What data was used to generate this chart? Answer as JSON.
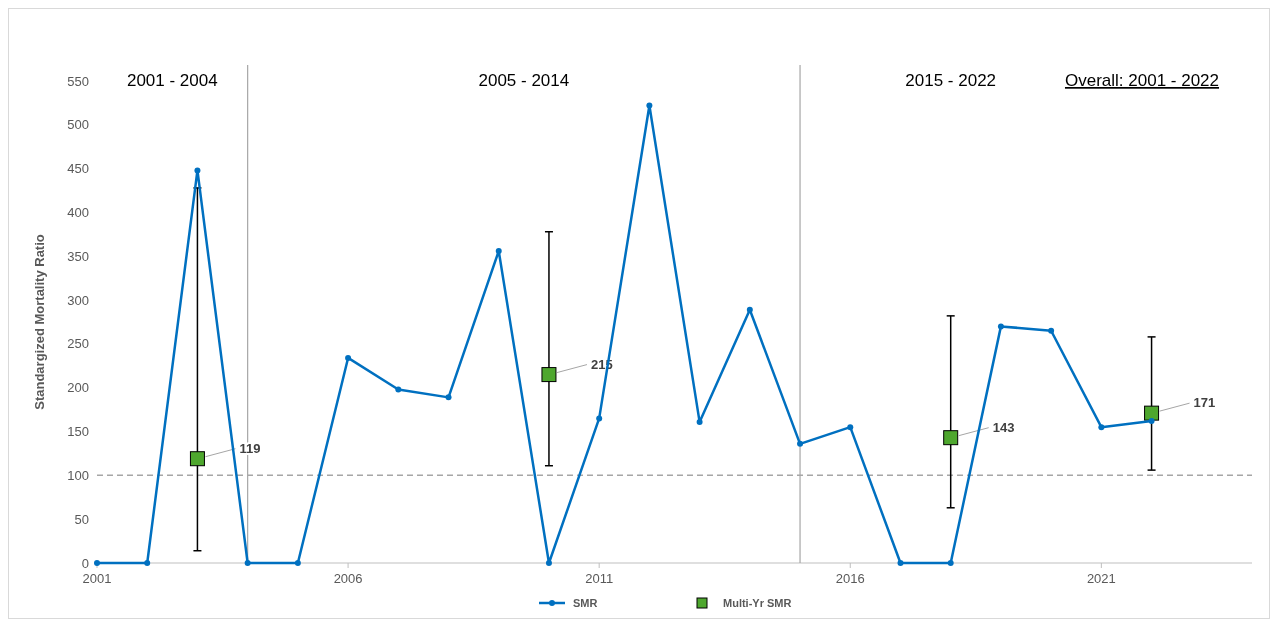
{
  "chart_data": {
    "type": "line",
    "ylabel": "Standargized Mortality Ratio",
    "x": [
      2001,
      2002,
      2003,
      2004,
      2005,
      2006,
      2007,
      2008,
      2009,
      2010,
      2011,
      2012,
      2013,
      2014,
      2015,
      2016,
      2017,
      2018,
      2019,
      2020,
      2021,
      2022
    ],
    "series": [
      {
        "name": "SMR",
        "color": "#0070c0",
        "marker": "circle",
        "values": [
          0,
          0,
          448,
          0,
          0,
          234,
          198,
          189,
          356,
          0,
          165,
          522,
          161,
          289,
          136,
          155,
          0,
          0,
          270,
          265,
          155,
          162
        ]
      },
      {
        "name": "Multi-Yr SMR",
        "type": "scatter",
        "color": "#4ea72e",
        "marker": "square",
        "x": [
          2003,
          2010,
          2018,
          2022
        ],
        "values": [
          119,
          215,
          143,
          171
        ],
        "errors": [
          [
            14,
            428
          ],
          [
            111,
            378
          ],
          [
            63,
            282
          ],
          [
            106,
            258
          ]
        ],
        "value_labels": [
          "119",
          "215",
          "143",
          "171"
        ]
      }
    ],
    "xlim": [
      2001,
      2024
    ],
    "xticks": [
      2001,
      2006,
      2011,
      2016,
      2021
    ],
    "ylim": [
      0,
      550
    ],
    "yticks": [
      0,
      50,
      100,
      150,
      200,
      250,
      300,
      350,
      400,
      450,
      500,
      550
    ],
    "ref_lines": [
      {
        "axis": "y",
        "value": 100,
        "color": "#a6a6a6",
        "line_style": "dashed"
      },
      {
        "axis": "x",
        "value": 2004,
        "color": "#a6a6a6",
        "line_style": "solid"
      },
      {
        "axis": "x",
        "value": 2015,
        "color": "#a6a6a6",
        "line_style": "solid"
      }
    ],
    "annotations": [
      "2001 - 2004",
      "2005 - 2014",
      "2015 - 2022",
      "Overall: 2001 - 2022"
    ],
    "grid": false,
    "legend": "bottom"
  }
}
